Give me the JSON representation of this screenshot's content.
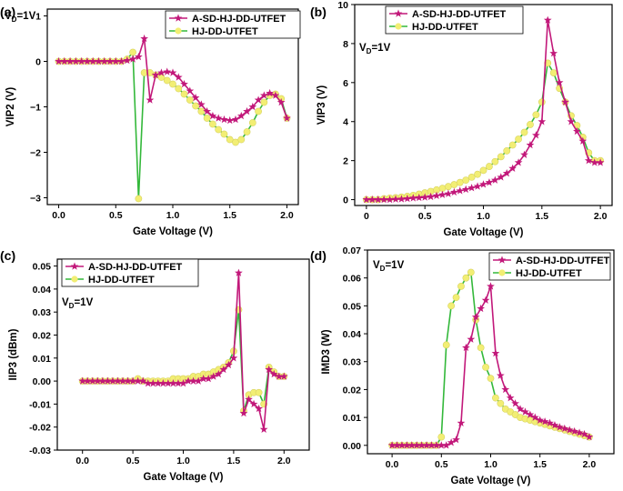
{
  "figure": {
    "series_colors": {
      "A-SD-HJ-DD-UTFET": "#c2187a",
      "HJ-DD-UTFET": "#33b83a"
    },
    "marker_fill": {
      "HJ-DD-UTFET": "#f2ee74"
    }
  },
  "chart_data": [
    {
      "panel_label": "(a)",
      "type": "line",
      "title": "",
      "xlabel": "Gate Voltage (V)",
      "ylabel": "VIP2 (V)",
      "annotation": "VD=1V",
      "annotation_main": "V",
      "annotation_sub": "D",
      "annotation_rest": "=1V",
      "xlim": [
        -0.1,
        2.1
      ],
      "ylim": [
        -3.15,
        1.15
      ],
      "xticks": [
        0.0,
        0.5,
        1.0,
        1.5,
        2.0
      ],
      "xtick_labels": [
        "0.0",
        "0.5",
        "1.0",
        "1.5",
        "2.0"
      ],
      "yticks": [
        -3,
        -2,
        -1,
        0,
        1
      ],
      "ytick_labels": [
        "−3",
        "−2",
        "−1",
        "0",
        "1"
      ],
      "legend": [
        "A-SD-HJ-DD-UTFET",
        "HJ-DD-UTFET"
      ],
      "series": [
        {
          "name": "A-SD-HJ-DD-UTFET",
          "x": [
            0.0,
            0.05,
            0.1,
            0.15,
            0.2,
            0.25,
            0.3,
            0.35,
            0.4,
            0.45,
            0.5,
            0.55,
            0.6,
            0.65,
            0.7,
            0.75,
            0.8,
            0.85,
            0.9,
            0.95,
            1.0,
            1.05,
            1.1,
            1.15,
            1.2,
            1.25,
            1.3,
            1.35,
            1.4,
            1.45,
            1.5,
            1.55,
            1.6,
            1.65,
            1.7,
            1.75,
            1.8,
            1.85,
            1.9,
            1.95,
            2.0
          ],
          "values": [
            0.0,
            0.0,
            0.0,
            0.0,
            0.0,
            0.0,
            0.0,
            0.0,
            0.0,
            0.0,
            0.0,
            0.0,
            0.02,
            0.05,
            0.1,
            0.5,
            -0.85,
            -0.3,
            -0.25,
            -0.23,
            -0.25,
            -0.35,
            -0.5,
            -0.65,
            -0.8,
            -0.95,
            -1.1,
            -1.2,
            -1.25,
            -1.28,
            -1.3,
            -1.28,
            -1.2,
            -1.1,
            -1.0,
            -0.85,
            -0.75,
            -0.7,
            -0.75,
            -0.9,
            -1.25
          ]
        },
        {
          "name": "HJ-DD-UTFET",
          "x": [
            0.0,
            0.05,
            0.1,
            0.15,
            0.2,
            0.25,
            0.3,
            0.35,
            0.4,
            0.45,
            0.5,
            0.55,
            0.6,
            0.65,
            0.7,
            0.75,
            0.8,
            0.85,
            0.9,
            0.95,
            1.0,
            1.05,
            1.1,
            1.15,
            1.2,
            1.25,
            1.3,
            1.35,
            1.4,
            1.45,
            1.5,
            1.55,
            1.6,
            1.65,
            1.7,
            1.75,
            1.8,
            1.85,
            1.9,
            1.95,
            2.0
          ],
          "values": [
            0.0,
            0.0,
            0.0,
            0.0,
            0.0,
            0.0,
            0.0,
            0.0,
            0.0,
            0.0,
            0.0,
            0.0,
            0.05,
            0.2,
            -3.02,
            -0.25,
            -0.25,
            -0.3,
            -0.35,
            -0.42,
            -0.5,
            -0.6,
            -0.72,
            -0.85,
            -0.98,
            -1.1,
            -1.25,
            -1.38,
            -1.5,
            -1.6,
            -1.72,
            -1.78,
            -1.72,
            -1.55,
            -1.35,
            -1.1,
            -0.9,
            -0.75,
            -0.72,
            -0.82,
            -1.25
          ]
        }
      ]
    },
    {
      "panel_label": "(b)",
      "type": "line",
      "title": "",
      "xlabel": "Gate Voltage (V)",
      "ylabel": "VIP3 (V)",
      "annotation": "VD=1V",
      "annotation_main": "V",
      "annotation_sub": "D",
      "annotation_rest": "=1V",
      "xlim": [
        -0.1,
        2.1
      ],
      "ylim": [
        -0.3,
        10.0
      ],
      "xticks": [
        0.0,
        0.5,
        1.0,
        1.5,
        2.0
      ],
      "xtick_labels": [
        "0",
        "0.5",
        "1.0",
        "1.5",
        "2.0"
      ],
      "yticks": [
        0,
        2,
        4,
        6,
        8,
        10
      ],
      "ytick_labels": [
        "0",
        "2",
        "4",
        "6",
        "8",
        "10"
      ],
      "legend": [
        "A-SD-HJ-DD-UTFET",
        "HJ-DD-UTFET"
      ],
      "series": [
        {
          "name": "A-SD-HJ-DD-UTFET",
          "x": [
            0.0,
            0.05,
            0.1,
            0.15,
            0.2,
            0.25,
            0.3,
            0.35,
            0.4,
            0.45,
            0.5,
            0.55,
            0.6,
            0.65,
            0.7,
            0.75,
            0.8,
            0.85,
            0.9,
            0.95,
            1.0,
            1.05,
            1.1,
            1.15,
            1.2,
            1.25,
            1.3,
            1.35,
            1.4,
            1.45,
            1.5,
            1.55,
            1.6,
            1.65,
            1.7,
            1.75,
            1.8,
            1.85,
            1.9,
            1.95,
            2.0
          ],
          "values": [
            0.0,
            0.0,
            0.0,
            0.0,
            0.0,
            0.02,
            0.03,
            0.05,
            0.08,
            0.1,
            0.12,
            0.15,
            0.2,
            0.25,
            0.3,
            0.38,
            0.45,
            0.52,
            0.6,
            0.68,
            0.78,
            0.88,
            1.0,
            1.15,
            1.35,
            1.6,
            1.9,
            2.3,
            2.8,
            3.3,
            4.0,
            9.2,
            7.5,
            6.0,
            5.0,
            4.0,
            3.5,
            3.0,
            2.0,
            1.9,
            1.9
          ]
        },
        {
          "name": "HJ-DD-UTFET",
          "x": [
            0.0,
            0.05,
            0.1,
            0.15,
            0.2,
            0.25,
            0.3,
            0.35,
            0.4,
            0.45,
            0.5,
            0.55,
            0.6,
            0.65,
            0.7,
            0.75,
            0.8,
            0.85,
            0.9,
            0.95,
            1.0,
            1.05,
            1.1,
            1.15,
            1.2,
            1.25,
            1.3,
            1.35,
            1.4,
            1.45,
            1.5,
            1.55,
            1.6,
            1.65,
            1.7,
            1.75,
            1.8,
            1.85,
            1.9,
            1.95,
            2.0
          ],
          "values": [
            0.0,
            0.0,
            0.0,
            0.05,
            0.08,
            0.1,
            0.13,
            0.17,
            0.22,
            0.28,
            0.35,
            0.42,
            0.5,
            0.58,
            0.67,
            0.77,
            0.88,
            1.0,
            1.15,
            1.3,
            1.5,
            1.7,
            1.95,
            2.2,
            2.5,
            2.8,
            3.1,
            3.45,
            3.85,
            4.35,
            5.0,
            7.0,
            6.5,
            5.7,
            5.0,
            4.3,
            3.8,
            3.2,
            2.4,
            2.0,
            2.0
          ]
        }
      ]
    },
    {
      "panel_label": "(c)",
      "type": "line",
      "title": "",
      "xlabel": "Gate Voltage (V)",
      "ylabel": "IIP3 (dBm)",
      "annotation": "VD=1V",
      "annotation_main": "V",
      "annotation_sub": "D",
      "annotation_rest": "=1V",
      "xlim": [
        -0.25,
        2.25
      ],
      "ylim": [
        -0.03,
        0.053
      ],
      "xticks": [
        0.0,
        0.5,
        1.0,
        1.5,
        2.0
      ],
      "xtick_labels": [
        "0.0",
        "0.5",
        "1.0",
        "1.5",
        "2.0"
      ],
      "yticks": [
        -0.03,
        -0.02,
        -0.01,
        0.0,
        0.01,
        0.02,
        0.03,
        0.04,
        0.05
      ],
      "ytick_labels": [
        "-0.03",
        "-0.02",
        "-0.01",
        "0.00",
        "0.01",
        "0.02",
        "0.03",
        "0.04",
        "0.05"
      ],
      "legend": [
        "A-SD-HJ-DD-UTFET",
        "HJ-DD-UTFET"
      ],
      "series": [
        {
          "name": "A-SD-HJ-DD-UTFET",
          "x": [
            0.0,
            0.05,
            0.1,
            0.15,
            0.2,
            0.25,
            0.3,
            0.35,
            0.4,
            0.45,
            0.5,
            0.55,
            0.6,
            0.65,
            0.7,
            0.75,
            0.8,
            0.85,
            0.9,
            0.95,
            1.0,
            1.05,
            1.1,
            1.15,
            1.2,
            1.25,
            1.3,
            1.35,
            1.4,
            1.45,
            1.5,
            1.55,
            1.6,
            1.65,
            1.7,
            1.75,
            1.8,
            1.85,
            1.9,
            1.95,
            2.0
          ],
          "values": [
            0.0,
            0.0,
            0.0,
            0.0,
            0.0,
            0.0,
            0.0,
            0.0,
            0.0,
            0.0,
            0.0,
            0.0,
            0.0,
            -0.001,
            -0.001,
            -0.001,
            -0.001,
            -0.001,
            -0.001,
            -0.001,
            -0.001,
            0.0,
            0.0,
            0.0,
            0.001,
            0.001,
            0.002,
            0.003,
            0.005,
            0.007,
            0.01,
            0.047,
            -0.014,
            -0.008,
            -0.01,
            -0.012,
            -0.021,
            0.005,
            0.003,
            0.002,
            0.002
          ]
        },
        {
          "name": "HJ-DD-UTFET",
          "x": [
            0.0,
            0.05,
            0.1,
            0.15,
            0.2,
            0.25,
            0.3,
            0.35,
            0.4,
            0.45,
            0.5,
            0.55,
            0.6,
            0.65,
            0.7,
            0.75,
            0.8,
            0.85,
            0.9,
            0.95,
            1.0,
            1.05,
            1.1,
            1.15,
            1.2,
            1.25,
            1.3,
            1.35,
            1.4,
            1.45,
            1.5,
            1.55,
            1.6,
            1.65,
            1.7,
            1.75,
            1.8,
            1.85,
            1.9,
            1.95,
            2.0
          ],
          "values": [
            0.0,
            0.0,
            0.0,
            0.0,
            0.0,
            0.0,
            0.0,
            0.0,
            0.0,
            0.0,
            0.0,
            0.001,
            0.0,
            0.0,
            0.0,
            0.0,
            0.0,
            0.0,
            0.001,
            0.001,
            0.001,
            0.001,
            0.002,
            0.002,
            0.003,
            0.003,
            0.004,
            0.005,
            0.006,
            0.008,
            0.013,
            0.031,
            -0.013,
            -0.006,
            -0.005,
            -0.005,
            -0.01,
            0.006,
            0.004,
            0.002,
            0.002
          ]
        }
      ]
    },
    {
      "panel_label": "(d)",
      "type": "line",
      "title": "",
      "xlabel": "Gate Voltage (V)",
      "ylabel": "IMD3 (W)",
      "annotation": "VD=1V",
      "annotation_main": "V",
      "annotation_sub": "D",
      "annotation_rest": "=1V",
      "xlim": [
        -0.25,
        2.25
      ],
      "ylim": [
        -0.003,
        0.07
      ],
      "xticks": [
        0.0,
        0.5,
        1.0,
        1.5,
        2.0
      ],
      "xtick_labels": [
        "0.0",
        "0.5",
        "1.0",
        "1.5",
        "2.0"
      ],
      "yticks": [
        0.0,
        0.01,
        0.02,
        0.03,
        0.04,
        0.05,
        0.06,
        0.07
      ],
      "ytick_labels": [
        "0.00",
        "0.01",
        "0.02",
        "0.03",
        "0.04",
        "0.05",
        "0.06",
        "0.07"
      ],
      "legend": [
        "A-SD-HJ-DD-UTFET",
        "HJ-DD-UTFET"
      ],
      "series": [
        {
          "name": "A-SD-HJ-DD-UTFET",
          "x": [
            0.0,
            0.05,
            0.1,
            0.15,
            0.2,
            0.25,
            0.3,
            0.35,
            0.4,
            0.45,
            0.5,
            0.55,
            0.6,
            0.65,
            0.7,
            0.75,
            0.8,
            0.85,
            0.9,
            0.95,
            1.0,
            1.05,
            1.1,
            1.15,
            1.2,
            1.25,
            1.3,
            1.35,
            1.4,
            1.45,
            1.5,
            1.55,
            1.6,
            1.65,
            1.7,
            1.75,
            1.8,
            1.85,
            1.9,
            1.95,
            2.0
          ],
          "values": [
            0.0,
            0.0,
            0.0,
            0.0,
            0.0,
            0.0,
            0.0,
            0.0,
            0.0,
            0.0,
            0.0,
            0.0,
            0.001,
            0.002,
            0.008,
            0.035,
            0.038,
            0.046,
            0.049,
            0.052,
            0.057,
            0.033,
            0.025,
            0.02,
            0.017,
            0.015,
            0.013,
            0.012,
            0.011,
            0.01,
            0.009,
            0.0085,
            0.008,
            0.0072,
            0.0065,
            0.006,
            0.0055,
            0.005,
            0.0045,
            0.004,
            0.003
          ]
        },
        {
          "name": "HJ-DD-UTFET",
          "x": [
            0.0,
            0.05,
            0.1,
            0.15,
            0.2,
            0.25,
            0.3,
            0.35,
            0.4,
            0.45,
            0.5,
            0.55,
            0.6,
            0.65,
            0.7,
            0.75,
            0.8,
            0.85,
            0.9,
            0.95,
            1.0,
            1.05,
            1.1,
            1.15,
            1.2,
            1.25,
            1.3,
            1.35,
            1.4,
            1.45,
            1.5,
            1.55,
            1.6,
            1.65,
            1.7,
            1.75,
            1.8,
            1.85,
            1.9,
            1.95,
            2.0
          ],
          "values": [
            0.0,
            0.0,
            0.0,
            0.0,
            0.0,
            0.0,
            0.0,
            0.0,
            0.0,
            0.0,
            0.003,
            0.036,
            0.05,
            0.053,
            0.057,
            0.06,
            0.062,
            0.045,
            0.035,
            0.028,
            0.024,
            0.017,
            0.015,
            0.013,
            0.012,
            0.011,
            0.01,
            0.0095,
            0.009,
            0.0085,
            0.008,
            0.0075,
            0.007,
            0.0065,
            0.006,
            0.0055,
            0.005,
            0.0045,
            0.004,
            0.0035,
            0.003
          ]
        }
      ]
    }
  ]
}
